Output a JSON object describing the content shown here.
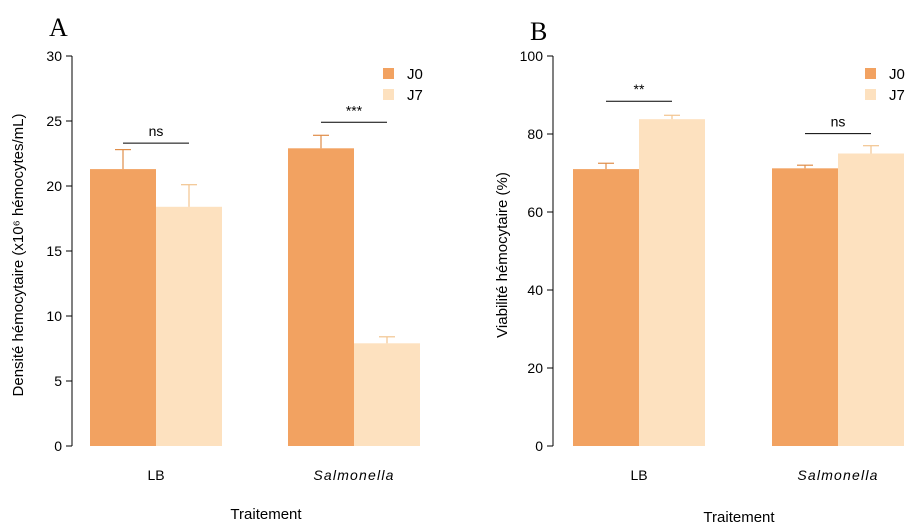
{
  "colors": {
    "J0": "#F2A261",
    "J7": "#FDE1BF",
    "J0_err": "#E08D48",
    "J7_err": "#F2C48F"
  },
  "chart_data": [
    {
      "panel_label": "A",
      "type": "bar",
      "xlabel": "Traitement",
      "ylabel": "Densité hémocytaire (x10⁶ hémocytes/mL)",
      "ylim": [
        0,
        30
      ],
      "yticks": [
        0,
        5,
        10,
        15,
        20,
        25,
        30
      ],
      "ytick_labels": [
        "0",
        "5",
        "10",
        "15",
        "20",
        "25",
        "30"
      ],
      "categories": [
        "LB",
        "Salmonella"
      ],
      "category_italic": [
        false,
        true
      ],
      "series": [
        {
          "name": "J0",
          "values": [
            21.3,
            22.9
          ],
          "errors": [
            1.5,
            1.0
          ]
        },
        {
          "name": "J7",
          "values": [
            18.4,
            7.9
          ],
          "errors": [
            1.7,
            0.5
          ]
        }
      ],
      "significance": [
        {
          "category": 0,
          "label": "ns",
          "y": 23.3
        },
        {
          "category": 1,
          "label": "***",
          "y": 24.9
        }
      ],
      "legend": {
        "position": "top-right",
        "labels": [
          "J0",
          "J7"
        ]
      }
    },
    {
      "panel_label": "B",
      "type": "bar",
      "xlabel": "Traitement",
      "ylabel": "Viabilité hémocytaire (%)",
      "ylim": [
        0,
        100
      ],
      "yticks": [
        0,
        20,
        40,
        60,
        80,
        100
      ],
      "ytick_labels": [
        "0",
        "20",
        "40",
        "60",
        "80",
        "100"
      ],
      "categories": [
        "LB",
        "Salmonella"
      ],
      "category_italic": [
        false,
        true
      ],
      "series": [
        {
          "name": "J0",
          "values": [
            71.0,
            71.2
          ],
          "errors": [
            1.5,
            0.8
          ]
        },
        {
          "name": "J7",
          "values": [
            83.8,
            75.0
          ],
          "errors": [
            1.0,
            2.0
          ]
        }
      ],
      "significance": [
        {
          "category": 0,
          "label": "**",
          "y": 88.4
        },
        {
          "category": 1,
          "label": "ns",
          "y": 80.1
        }
      ],
      "legend": {
        "position": "top-right",
        "labels": [
          "J0",
          "J7"
        ]
      }
    }
  ]
}
